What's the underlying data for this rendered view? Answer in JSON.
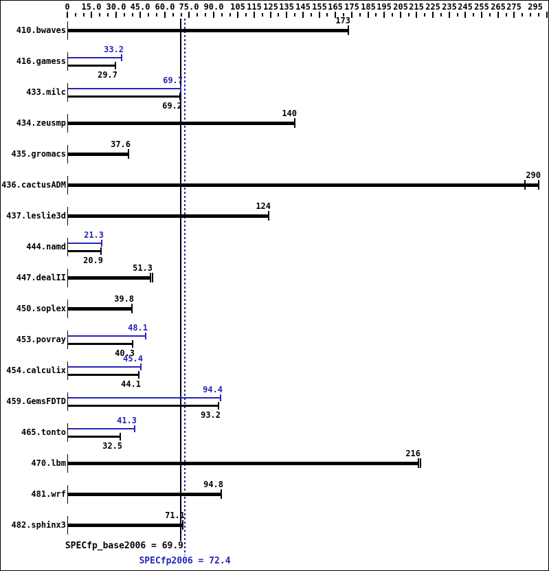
{
  "chart_data": {
    "type": "bar",
    "orientation": "horizontal",
    "title": "",
    "xlabel": "",
    "ylabel": "",
    "xlim": [
      0,
      295
    ],
    "grid": false,
    "legend": "none",
    "colors": {
      "base": "#000000",
      "peak": "#2424bb"
    },
    "axis_labels": [
      {
        "value": 0,
        "text": "0"
      },
      {
        "value": 15,
        "text": "15.0"
      },
      {
        "value": 30,
        "text": "30.0"
      },
      {
        "value": 45,
        "text": "45.0"
      },
      {
        "value": 60,
        "text": "60.0"
      },
      {
        "value": 75,
        "text": "75.0"
      },
      {
        "value": 90,
        "text": "90.0"
      },
      {
        "value": 105,
        "text": "105"
      },
      {
        "value": 115,
        "text": "115"
      },
      {
        "value": 125,
        "text": "125"
      },
      {
        "value": 135,
        "text": "135"
      },
      {
        "value": 145,
        "text": "145"
      },
      {
        "value": 155,
        "text": "155"
      },
      {
        "value": 165,
        "text": "165"
      },
      {
        "value": 175,
        "text": "175"
      },
      {
        "value": 185,
        "text": "185"
      },
      {
        "value": 195,
        "text": "195"
      },
      {
        "value": 205,
        "text": "205"
      },
      {
        "value": 215,
        "text": "215"
      },
      {
        "value": 225,
        "text": "225"
      },
      {
        "value": 235,
        "text": "235"
      },
      {
        "value": 245,
        "text": "245"
      },
      {
        "value": 255,
        "text": "255"
      },
      {
        "value": 265,
        "text": "265"
      },
      {
        "value": 275,
        "text": "275"
      },
      {
        "value": 295,
        "text": "295"
      }
    ],
    "minor_tick_step": 5,
    "benchmarks": [
      {
        "name": "410.bwaves",
        "base": 173,
        "peak": null
      },
      {
        "name": "416.gamess",
        "base": 29.7,
        "peak": 33.2
      },
      {
        "name": "433.milc",
        "base": 69.2,
        "peak": 69.7
      },
      {
        "name": "434.zeusmp",
        "base": 140,
        "peak": null
      },
      {
        "name": "435.gromacs",
        "base": 37.6,
        "peak": null
      },
      {
        "name": "436.cactusADM",
        "base": 290,
        "peak": null,
        "extra_tick_value": 281.5
      },
      {
        "name": "437.leslie3d",
        "base": 124,
        "peak": null
      },
      {
        "name": "444.namd",
        "base": 20.9,
        "peak": 21.3
      },
      {
        "name": "447.dealII",
        "base": 51.3,
        "peak": null,
        "double_cap": true
      },
      {
        "name": "450.soplex",
        "base": 39.8,
        "peak": null
      },
      {
        "name": "453.povray",
        "base": 40.3,
        "peak": 48.1
      },
      {
        "name": "454.calculix",
        "base": 44.1,
        "peak": 45.4
      },
      {
        "name": "459.GemsFDTD",
        "base": 93.2,
        "peak": 94.4
      },
      {
        "name": "465.tonto",
        "base": 32.5,
        "peak": 41.3
      },
      {
        "name": "470.lbm",
        "base": 216,
        "peak": null,
        "double_cap": true
      },
      {
        "name": "481.wrf",
        "base": 94.8,
        "peak": null
      },
      {
        "name": "482.sphinx3",
        "base": 71.1,
        "peak": null
      }
    ],
    "means": {
      "base_label": "SPECfp_base2006 = 69.9",
      "base_value": 69.9,
      "peak_label": "SPECfp2006 = 72.4",
      "peak_value": 72.4
    }
  }
}
